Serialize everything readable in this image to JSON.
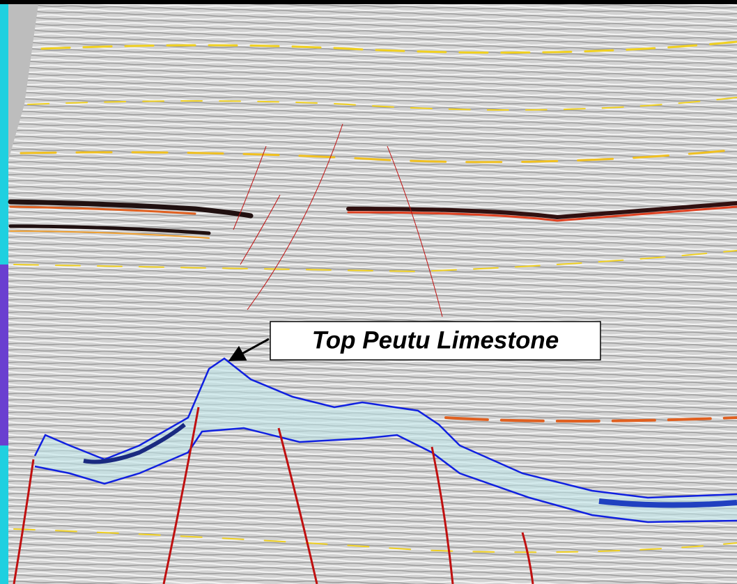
{
  "annotation": {
    "label": "Top Peutu Limestone"
  }
}
